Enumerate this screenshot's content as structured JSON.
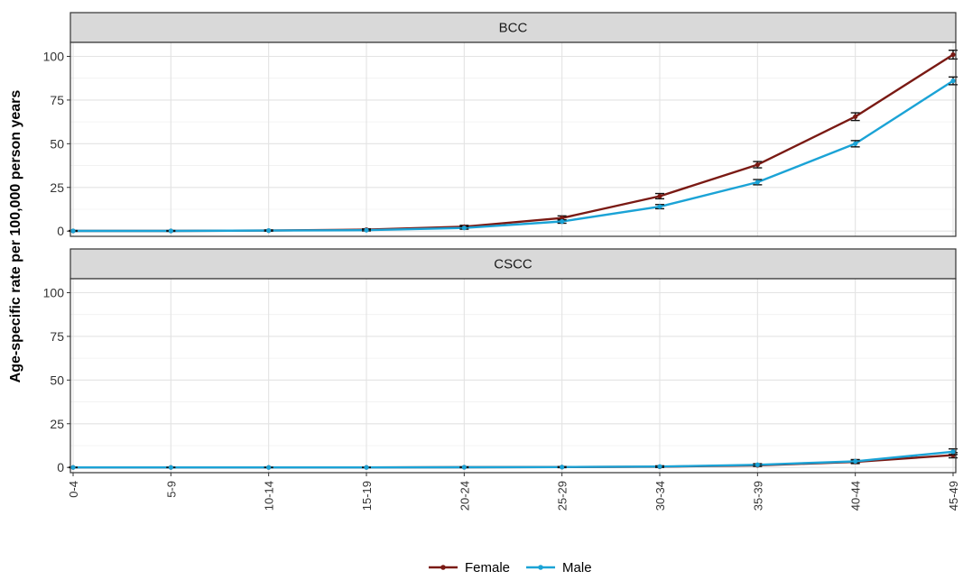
{
  "chart_data": {
    "type": "line",
    "ylabel": "Age-specific rate per 100,000 person years",
    "xlabel": "",
    "categories": [
      "0-4",
      "5-9",
      "10-14",
      "15-19",
      "20-24",
      "25-29",
      "30-34",
      "35-39",
      "40-44",
      "45-49"
    ],
    "yticks": [
      0,
      25,
      50,
      75,
      100
    ],
    "ylim": [
      -3,
      108
    ],
    "grid": true,
    "legend": {
      "position": "bottom",
      "entries": [
        "Female",
        "Male"
      ]
    },
    "colors": {
      "Female": "#7a1a14",
      "Male": "#1ba3d6"
    },
    "panels": [
      {
        "strip": "BCC",
        "series": [
          {
            "name": "Female",
            "values": [
              0.1,
              0.1,
              0.3,
              0.8,
              2.5,
              7.5,
              20,
              38,
              65.5,
              101
            ],
            "ci": [
              0.2,
              0.2,
              0.3,
              0.5,
              0.8,
              1.2,
              1.5,
              1.8,
              2.2,
              2.5
            ]
          },
          {
            "name": "Male",
            "values": [
              0.1,
              0.1,
              0.3,
              0.5,
              1.8,
              5.5,
              14,
              28,
              50,
              86
            ],
            "ci": [
              0.2,
              0.2,
              0.3,
              0.4,
              0.7,
              1.0,
              1.2,
              1.5,
              1.8,
              2.2
            ]
          }
        ]
      },
      {
        "strip": "CSCC",
        "series": [
          {
            "name": "Female",
            "values": [
              0,
              0,
              0,
              0,
              0.1,
              0.2,
              0.4,
              1.2,
              3.2,
              7
            ],
            "ci": [
              0.1,
              0.1,
              0.1,
              0.1,
              0.2,
              0.3,
              0.4,
              0.6,
              1.0,
              1.5
            ]
          },
          {
            "name": "Male",
            "values": [
              0,
              0,
              0,
              0,
              0.1,
              0.2,
              0.5,
              1.5,
              3.5,
              9
            ],
            "ci": [
              0.1,
              0.1,
              0.1,
              0.1,
              0.2,
              0.3,
              0.4,
              0.6,
              1.0,
              1.6
            ]
          }
        ]
      }
    ]
  }
}
